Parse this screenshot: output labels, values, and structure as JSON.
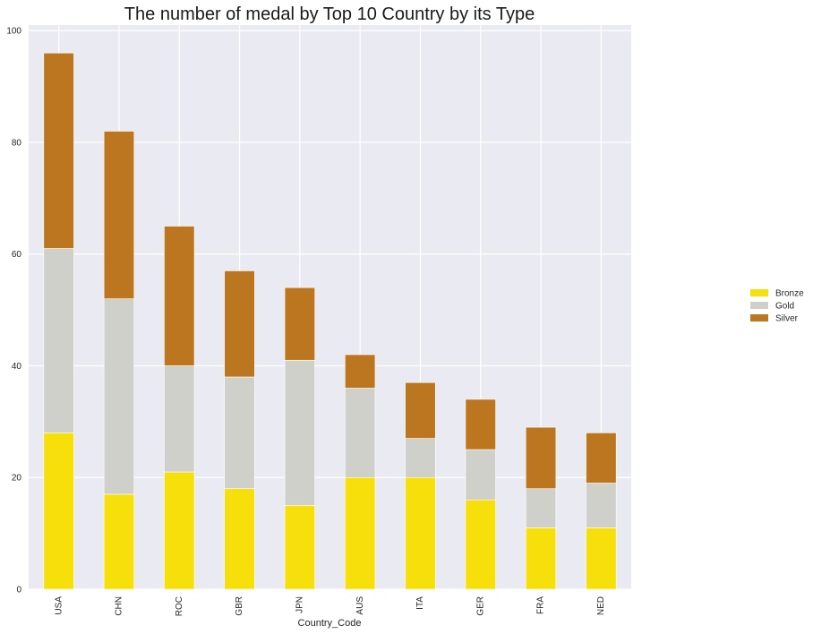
{
  "chart_data": {
    "type": "bar",
    "stacked": true,
    "title": "The number of medal by Top 10 Country by its Type",
    "xlabel": "Country_Code",
    "ylabel": "",
    "categories": [
      "USA",
      "CHN",
      "ROC",
      "GBR",
      "JPN",
      "AUS",
      "ITA",
      "GER",
      "FRA",
      "NED"
    ],
    "series": [
      {
        "name": "Bronze",
        "color": "#f7df0c",
        "values": [
          28,
          17,
          21,
          18,
          15,
          20,
          20,
          16,
          11,
          11
        ]
      },
      {
        "name": "Gold",
        "color": "#d0d0ca",
        "values": [
          33,
          35,
          19,
          20,
          26,
          16,
          7,
          9,
          7,
          8
        ]
      },
      {
        "name": "Silver",
        "color": "#bd7620",
        "values": [
          35,
          30,
          25,
          19,
          13,
          6,
          10,
          9,
          11,
          9
        ]
      }
    ],
    "ylim": [
      0,
      101
    ],
    "yticks": [
      0,
      20,
      40,
      60,
      80,
      100
    ],
    "grid": true,
    "legend_position": "right",
    "colors": {
      "plot_background": "#eaeaf2",
      "grid": "#ffffff"
    }
  }
}
